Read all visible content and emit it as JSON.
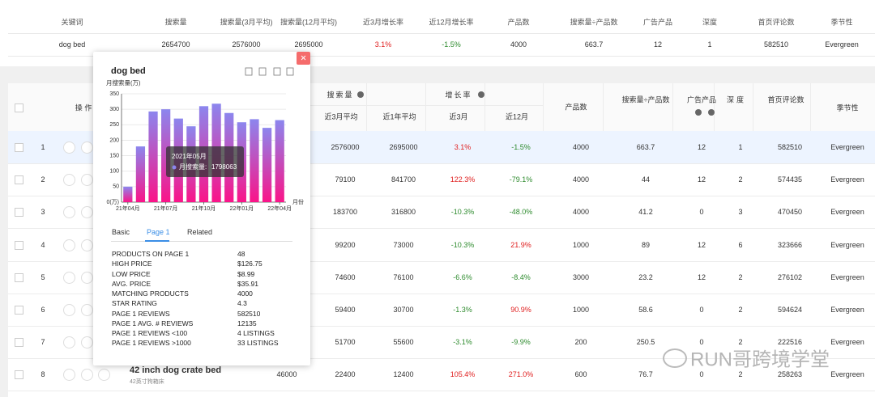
{
  "summary": {
    "headers": [
      "关键词",
      "搜索量",
      "搜索量(3月平均)",
      "搜索量(12月平均)",
      "近3月增长率",
      "近12月增长率",
      "产品数",
      "搜索量÷产品数",
      "广告产品",
      "深度",
      "首页评论数",
      "季节性"
    ],
    "row": [
      "dog bed",
      2654700,
      2576000,
      2695000,
      "3.1%",
      "-1.5%",
      4000,
      663.7,
      12,
      1,
      582510,
      "Evergreen"
    ]
  },
  "table": {
    "headers": {
      "ops": "操 作",
      "volume_group": "搜索量",
      "growth_group": "增长率",
      "avg3": "近3月平均",
      "avg12": "近1年平均",
      "g3": "近3月",
      "g12": "近12月",
      "products": "产品数",
      "ratio": "搜索量÷产品数",
      "ads": "广告产品",
      "depth": "深度",
      "reviews": "首页评论数",
      "season": "季节性"
    },
    "rows": [
      {
        "index": 1,
        "avg3": 2576000,
        "avg12": 2695000,
        "g3": "3.1%",
        "g12": "-1.5%",
        "products": 4000,
        "ratio": 663.7,
        "ads": 12,
        "depth": 1,
        "reviews": 582510,
        "season": "Evergreen"
      },
      {
        "index": 2,
        "avg3": 79100,
        "avg12": 841700,
        "g3": "122.3%",
        "g12": "-79.1%",
        "products": 4000,
        "ratio": 44,
        "ads": 12,
        "depth": 2,
        "reviews": 574435,
        "season": "Evergreen"
      },
      {
        "index": 3,
        "avg3": 183700,
        "avg12": 316800,
        "g3": "-10.3%",
        "g12": "-48.0%",
        "products": 4000,
        "ratio": 41.2,
        "ads": 0,
        "depth": 3,
        "reviews": 470450,
        "season": "Evergreen"
      },
      {
        "index": 4,
        "avg3": 99200,
        "avg12": 73000,
        "g3": "-10.3%",
        "g12": "21.9%",
        "products": 1000,
        "ratio": 89,
        "ads": 12,
        "depth": 6,
        "reviews": 323666,
        "season": "Evergreen"
      },
      {
        "index": 5,
        "avg3": 74600,
        "avg12": 76100,
        "g3": "-6.6%",
        "g12": "-8.4%",
        "products": 3000,
        "ratio": 23.2,
        "ads": 12,
        "depth": 2,
        "reviews": 276102,
        "season": "Evergreen"
      },
      {
        "index": 6,
        "avg3": 59400,
        "avg12": 30700,
        "g3": "-1.3%",
        "g12": "90.9%",
        "products": 1000,
        "ratio": 58.6,
        "ads": 0,
        "depth": 2,
        "reviews": 594624,
        "season": "Evergreen"
      },
      {
        "index": 7,
        "avg3": 51700,
        "avg12": 55600,
        "g3": "-3.1%",
        "g12": "-9.9%",
        "products": 200,
        "ratio": 250.5,
        "ads": 0,
        "depth": 2,
        "reviews": 222516,
        "season": "Evergreen"
      },
      {
        "index": 8,
        "keyword": "42 inch dog crate bed",
        "keyword_cn": "42英寸狗箱床",
        "search": 46000,
        "avg3": 22400,
        "avg12": 12400,
        "g3": "105.4%",
        "g12": "271.0%",
        "products": 600,
        "ratio": 76.7,
        "ads": 0,
        "depth": 2,
        "reviews": 258263,
        "season": "Evergreen"
      }
    ]
  },
  "popup": {
    "tabs": [
      "Basic",
      "Page 1",
      "Related"
    ],
    "active_tab": 1,
    "details": [
      [
        "PRODUCTS ON PAGE 1",
        "48"
      ],
      [
        "HIGH PRICE",
        "$126.75"
      ],
      [
        "LOW PRICE",
        "$8.99"
      ],
      [
        "AVG. PRICE",
        "$35.91"
      ],
      [
        "MATCHING PRODUCTS",
        "4000"
      ],
      [
        "STAR RATING",
        "4.3"
      ],
      [
        "PAGE 1 REVIEWS",
        "582510"
      ],
      [
        "PAGE 1 AVG. # REVIEWS",
        "12135"
      ],
      [
        "PAGE 1 REVIEWS <100",
        "4 LISTINGS"
      ],
      [
        "PAGE 1 REVIEWS >1000",
        "33 LISTINGS"
      ]
    ]
  },
  "chart_data": {
    "type": "bar",
    "title": "dog bed",
    "y_label": "月搜索量(万)",
    "x_label": "月份",
    "categories": [
      "21年04月",
      null,
      null,
      "21年07月",
      null,
      null,
      "21年10月",
      null,
      null,
      "22年01月",
      null,
      null,
      "22年04月"
    ],
    "values": [
      50,
      180,
      293,
      300,
      270,
      245,
      310,
      318,
      288,
      258,
      268,
      240,
      265
    ],
    "gradient": [
      "#8c86ee",
      "#fa1489"
    ],
    "ylim": [
      0,
      350
    ],
    "yticks": [
      {
        "value": 0,
        "label": "0(万)"
      },
      50,
      100,
      150,
      200,
      250,
      300,
      350
    ],
    "grid": true,
    "tooltip": {
      "title": "2021年05月",
      "label": "月搜索量:",
      "value": 1798063
    }
  },
  "watermark": "RUN哥跨境学堂"
}
